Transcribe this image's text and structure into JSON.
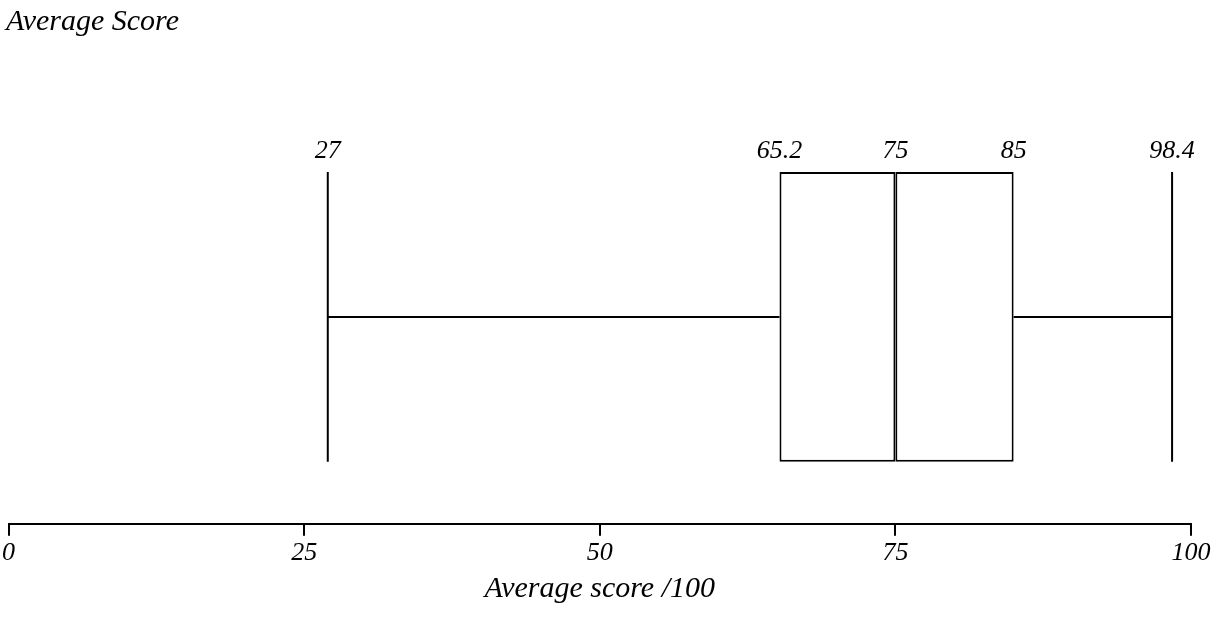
{
  "chart_data": {
    "type": "box",
    "title": "Average Score",
    "xlabel": "Average score /100",
    "orientation": "horizontal",
    "categories": [
      null
    ],
    "boxes": [
      {
        "low": 27,
        "q1": 65.2,
        "median": 75,
        "q3": 85,
        "high": 98.4
      }
    ],
    "xlim": [
      0,
      100
    ],
    "xticks": [
      0,
      25,
      50,
      75,
      100
    ],
    "tick_labels": "x",
    "annotations": [
      "27",
      "65.2",
      "75",
      "85",
      "98.4"
    ]
  }
}
